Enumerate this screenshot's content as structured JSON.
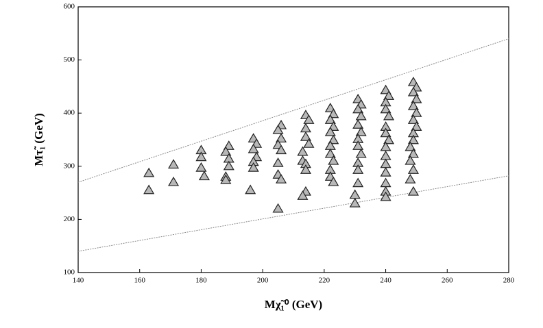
{
  "chart_data": {
    "type": "scatter",
    "xlabel": "Mχ̃₁⁰ (GeV)",
    "ylabel": "Mτ̃₁ (GeV)",
    "xlim": [
      140,
      280
    ],
    "xticks": [
      140,
      160,
      180,
      200,
      220,
      240,
      260,
      280
    ],
    "ylim": [
      100,
      600
    ],
    "yticks": [
      100,
      200,
      300,
      400,
      500,
      600
    ],
    "marker_color": "#b8b8b8",
    "lines": [
      {
        "color": "#888888",
        "x": [
          140,
          280
        ],
        "y": [
          270,
          540
        ]
      },
      {
        "color": "#888888",
        "x": [
          140,
          280
        ],
        "y": [
          140,
          282
        ]
      }
    ],
    "series": [
      {
        "name": "points",
        "x": [
          163,
          163,
          171,
          171,
          180,
          180,
          180,
          181,
          189,
          188,
          189,
          189,
          188,
          188,
          197,
          198,
          197,
          198,
          197,
          197,
          196,
          206,
          205,
          206,
          205,
          206,
          205,
          205,
          206,
          205,
          214,
          215,
          214,
          214,
          215,
          213,
          213,
          214,
          214,
          214,
          213,
          222,
          223,
          222,
          223,
          222,
          223,
          222,
          222,
          223,
          222,
          222,
          223,
          231,
          232,
          231,
          232,
          231,
          232,
          231,
          231,
          232,
          231,
          231,
          231,
          230,
          230,
          240,
          241,
          240,
          240,
          241,
          240,
          240,
          241,
          240,
          240,
          240,
          240,
          240,
          240,
          240,
          249,
          250,
          249,
          250,
          249,
          250,
          249,
          250,
          249,
          249,
          248,
          249,
          248,
          249,
          248,
          249
        ],
        "y": [
          287,
          255,
          303,
          270,
          330,
          317,
          297,
          281,
          338,
          327,
          314,
          300,
          280,
          274,
          352,
          342,
          332,
          317,
          308,
          297,
          255,
          377,
          368,
          352,
          340,
          330,
          306,
          284,
          275,
          220,
          396,
          387,
          371,
          355,
          342,
          327,
          310,
          304,
          293,
          252,
          244,
          409,
          398,
          387,
          374,
          364,
          349,
          338,
          323,
          310,
          293,
          280,
          270,
          426,
          416,
          407,
          394,
          378,
          364,
          351,
          338,
          323,
          306,
          293,
          268,
          246,
          230,
          443,
          432,
          420,
          407,
          394,
          374,
          362,
          349,
          336,
          319,
          304,
          288,
          268,
          252,
          242,
          458,
          448,
          439,
          426,
          413,
          400,
          387,
          374,
          362,
          349,
          336,
          323,
          310,
          293,
          275,
          252
        ]
      }
    ]
  }
}
